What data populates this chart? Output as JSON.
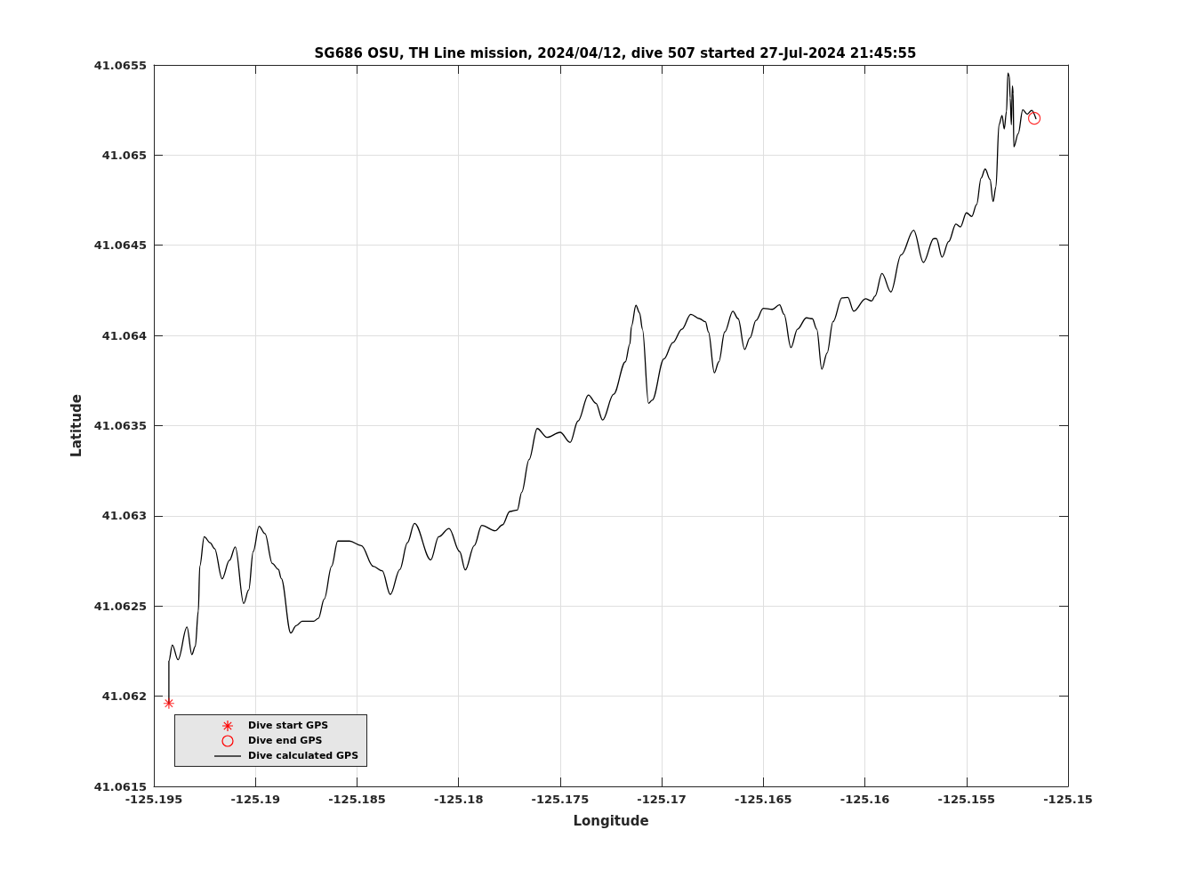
{
  "chart_data": {
    "type": "line",
    "title": "SG686 OSU, TH Line mission, 2024/04/12, dive 507 started 27-Jul-2024 21:45:55",
    "xlabel": "Longitude",
    "ylabel": "Latitude",
    "xlim": [
      -125.195,
      -125.15
    ],
    "ylim": [
      41.0615,
      41.0655
    ],
    "xticks": [
      -125.195,
      -125.19,
      -125.185,
      -125.18,
      -125.175,
      -125.17,
      -125.165,
      -125.16,
      -125.155,
      -125.15
    ],
    "yticks": [
      41.0615,
      41.062,
      41.0625,
      41.063,
      41.0635,
      41.064,
      41.0645,
      41.065,
      41.0655
    ],
    "grid": true,
    "legend": "bottom left",
    "series": [
      {
        "name": "Dive start GPS",
        "type": "scatter",
        "color": "#ff0000",
        "marker": "cross",
        "x": [
          -125.19426
        ],
        "values": [
          41.06196
        ]
      },
      {
        "name": "Dive end GPS",
        "type": "scatter",
        "color": "#ff0000",
        "marker": "circle",
        "x": [
          -125.15166
        ],
        "values": [
          41.065204
        ]
      },
      {
        "name": "Dive calculated GPS",
        "color": "#000000",
        "marker": "none",
        "line_style": "solid",
        "x": [
          -125.19426,
          -125.19426,
          -125.19409,
          -125.19381,
          -125.19337,
          -125.19313,
          -125.19296,
          -125.19281,
          -125.19274,
          -125.19252,
          -125.19223,
          -125.19201,
          -125.19164,
          -125.19128,
          -125.19099,
          -125.19058,
          -125.19033,
          -125.19011,
          -125.18982,
          -125.18953,
          -125.18917,
          -125.18887,
          -125.18873,
          -125.18826,
          -125.188,
          -125.1877,
          -125.18734,
          -125.18712,
          -125.1869,
          -125.18661,
          -125.18625,
          -125.18595,
          -125.18537,
          -125.18479,
          -125.1842,
          -125.18376,
          -125.18336,
          -125.18289,
          -125.18252,
          -125.18217,
          -125.18137,
          -125.18098,
          -125.18047,
          -125.17995,
          -125.17967,
          -125.17923,
          -125.17886,
          -125.1782,
          -125.17784,
          -125.17748,
          -125.17711,
          -125.17689,
          -125.17653,
          -125.17613,
          -125.17565,
          -125.175,
          -125.17451,
          -125.17412,
          -125.17361,
          -125.17324,
          -125.17291,
          -125.17237,
          -125.17179,
          -125.17157,
          -125.17149,
          -125.17127,
          -125.17109,
          -125.17095,
          -125.17065,
          -125.17047,
          -125.16989,
          -125.16945,
          -125.16901,
          -125.16857,
          -125.16814,
          -125.16785,
          -125.1677,
          -125.16741,
          -125.16719,
          -125.1669,
          -125.1665,
          -125.16624,
          -125.16592,
          -125.16566,
          -125.16536,
          -125.165,
          -125.16456,
          -125.1642,
          -125.16398,
          -125.16364,
          -125.16332,
          -125.16288,
          -125.16259,
          -125.16237,
          -125.16212,
          -125.16186,
          -125.16157,
          -125.16113,
          -125.16084,
          -125.16055,
          -125.15997,
          -125.15967,
          -125.1595,
          -125.15916,
          -125.15872,
          -125.15822,
          -125.1576,
          -125.15712,
          -125.15661,
          -125.15648,
          -125.1562,
          -125.15588,
          -125.15552,
          -125.1553,
          -125.155,
          -125.15474,
          -125.1545,
          -125.15428,
          -125.15408,
          -125.15384,
          -125.15369,
          -125.15355,
          -125.1534,
          -125.15325,
          -125.15314,
          -125.15303,
          -125.15296,
          -125.15289,
          -125.15285,
          -125.15279,
          -125.15274,
          -125.1527,
          -125.15267,
          -125.15245,
          -125.15223,
          -125.15201,
          -125.15179,
          -125.15158
        ],
        "values": [
          41.06196,
          41.062195,
          41.062284,
          41.062202,
          41.062383,
          41.062231,
          41.062276,
          41.062473,
          41.06272,
          41.062884,
          41.062851,
          41.062818,
          41.062651,
          41.062753,
          41.062827,
          41.062514,
          41.062589,
          41.062802,
          41.062942,
          41.062901,
          41.062736,
          41.062703,
          41.062654,
          41.06235,
          41.062391,
          41.062416,
          41.062416,
          41.062416,
          41.062432,
          41.062539,
          41.06272,
          41.06286,
          41.06286,
          41.062835,
          41.06272,
          41.062695,
          41.062564,
          41.062703,
          41.062851,
          41.062958,
          41.062756,
          41.062884,
          41.06293,
          41.062802,
          41.0627,
          41.062835,
          41.062947,
          41.062917,
          41.06295,
          41.063024,
          41.063032,
          41.063131,
          41.063312,
          41.063484,
          41.063435,
          41.063463,
          41.063407,
          41.063526,
          41.06367,
          41.063624,
          41.063531,
          41.063674,
          41.063854,
          41.063953,
          41.064051,
          41.064167,
          41.064125,
          41.064035,
          41.063624,
          41.063641,
          41.063871,
          41.063961,
          41.064035,
          41.064117,
          41.064093,
          41.064076,
          41.064019,
          41.063793,
          41.063854,
          41.064019,
          41.064134,
          41.064093,
          41.063923,
          41.063986,
          41.064084,
          41.06415,
          41.064145,
          41.06417,
          41.064117,
          41.063933,
          41.064035,
          41.064098,
          41.064093,
          41.064035,
          41.063813,
          41.063903,
          41.064076,
          41.064208,
          41.064211,
          41.064134,
          41.064203,
          41.064191,
          41.064218,
          41.064344,
          41.064241,
          41.064446,
          41.064583,
          41.064405,
          41.064537,
          41.064537,
          41.064434,
          41.06452,
          41.064618,
          41.064602,
          41.06468,
          41.06466,
          41.064726,
          41.064873,
          41.064923,
          41.064865,
          41.064742,
          41.064824,
          41.065169,
          41.065219,
          41.065145,
          41.065243,
          41.065455,
          41.065436,
          41.065317,
          41.065169,
          41.065383,
          41.065342,
          41.065046,
          41.06512,
          41.065252,
          41.065227,
          41.065248,
          41.065202
        ]
      }
    ]
  }
}
